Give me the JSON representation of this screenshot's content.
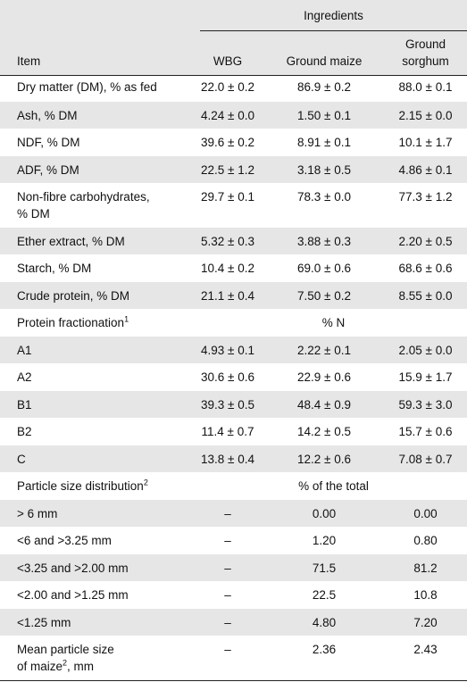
{
  "header": {
    "group_label": "Ingredients",
    "item": "Item",
    "wbg": "WBG",
    "ground_maize": "Ground maize",
    "ground_sorghum_line1": "Ground",
    "ground_sorghum_line2": "sorghum"
  },
  "rows": [
    {
      "item": "Dry matter (DM), % as fed",
      "wbg": "22.0 ± 0.2",
      "maize": "86.9 ± 0.2",
      "sorghum": "88.0 ± 0.1"
    },
    {
      "item": "Ash, % DM",
      "wbg": "4.24 ± 0.0",
      "maize": "1.50 ± 0.1",
      "sorghum": "2.15 ± 0.0"
    },
    {
      "item": "NDF, % DM",
      "wbg": "39.6 ± 0.2",
      "maize": "8.91 ± 0.1",
      "sorghum": "10.1 ± 1.7"
    },
    {
      "item": "ADF, % DM",
      "wbg": "22.5 ± 1.2",
      "maize": "3.18 ± 0.5",
      "sorghum": "4.86 ± 0.1"
    },
    {
      "item_line1": "Non-fibre carbohydrates,",
      "item_line2": "% DM",
      "wbg": "29.7 ± 0.1",
      "maize": "78.3 ± 0.0",
      "sorghum": "77.3 ± 1.2"
    },
    {
      "item": "Ether extract, % DM",
      "wbg": "5.32 ± 0.3",
      "maize": "3.88 ± 0.3",
      "sorghum": "2.20 ± 0.5"
    },
    {
      "item": "Starch, % DM",
      "wbg": "10.4 ± 0.2",
      "maize": "69.0 ± 0.6",
      "sorghum": "68.6 ± 0.6"
    },
    {
      "item": "Crude protein, % DM",
      "wbg": "21.1 ± 0.4",
      "maize": "7.50 ± 0.2",
      "sorghum": "8.55 ± 0.0"
    },
    {
      "item": "Protein fractionation",
      "sup": "1",
      "span": "% N"
    },
    {
      "item": "A1",
      "wbg": "4.93 ± 0.1",
      "maize": "2.22 ± 0.1",
      "sorghum": "2.05 ± 0.0"
    },
    {
      "item": "A2",
      "wbg": "30.6 ± 0.6",
      "maize": "22.9 ± 0.6",
      "sorghum": "15.9 ± 1.7"
    },
    {
      "item": "B1",
      "wbg": "39.3 ± 0.5",
      "maize": "48.4 ± 0.9",
      "sorghum": "59.3 ± 3.0"
    },
    {
      "item": "B2",
      "wbg": "11.4 ± 0.7",
      "maize": "14.2 ± 0.5",
      "sorghum": "15.7 ± 0.6"
    },
    {
      "item": "C",
      "wbg": "13.8 ± 0.4",
      "maize": "12.2 ± 0.6",
      "sorghum": "7.08 ± 0.7"
    },
    {
      "item": "Particle size distribution",
      "sup": "2",
      "span": "% of the total"
    },
    {
      "item": "> 6 mm",
      "wbg": "–",
      "maize": "0.00",
      "sorghum": "0.00"
    },
    {
      "item": "<6 and >3.25 mm",
      "wbg": "–",
      "maize": "1.20",
      "sorghum": "0.80"
    },
    {
      "item": "<3.25 and >2.00 mm",
      "wbg": "–",
      "maize": "71.5",
      "sorghum": "81.2"
    },
    {
      "item": "<2.00 and >1.25 mm",
      "wbg": "–",
      "maize": "22.5",
      "sorghum": "10.8"
    },
    {
      "item": "<1.25 mm",
      "wbg": "–",
      "maize": "4.80",
      "sorghum": "7.20"
    },
    {
      "item_line1": "Mean particle size",
      "item_line2a": "of maize",
      "sup": "2",
      "item_line2b": ", mm",
      "wbg": "–",
      "maize": "2.36",
      "sorghum": "2.43"
    }
  ]
}
